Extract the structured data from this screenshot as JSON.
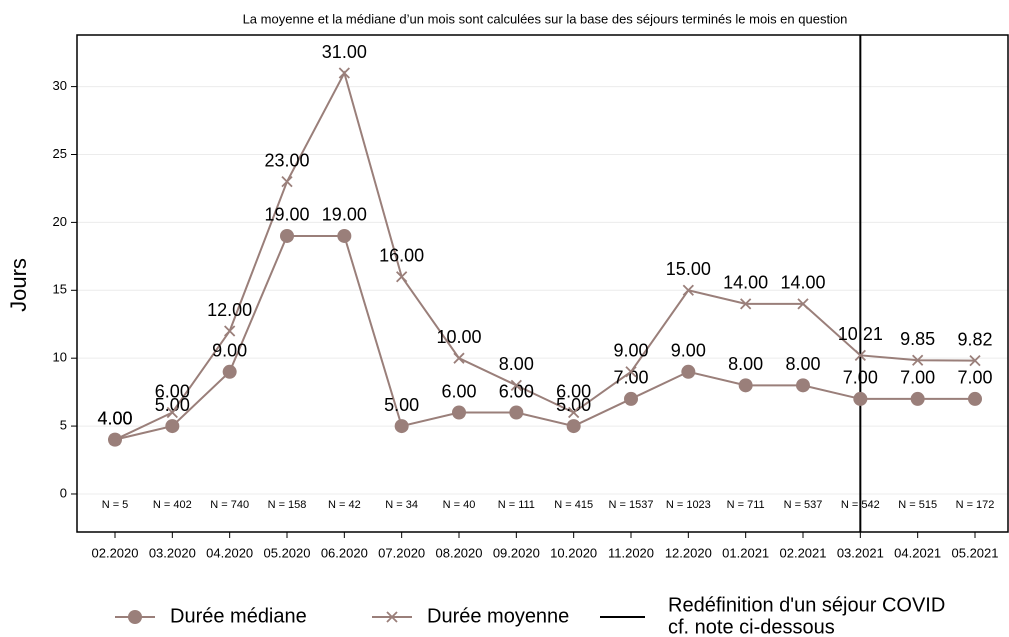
{
  "chart_data": {
    "type": "line",
    "title": "La moyenne et la médiane d’un mois sont calculées sur la base des séjours terminés le mois en question",
    "y_label": "Jours",
    "categories": [
      "02.2020",
      "03.2020",
      "04.2020",
      "05.2020",
      "06.2020",
      "07.2020",
      "08.2020",
      "09.2020",
      "10.2020",
      "11.2020",
      "12.2020",
      "01.2021",
      "02.2021",
      "03.2021",
      "04.2021",
      "05.2021"
    ],
    "series": [
      {
        "name": "Durée médiane",
        "color": "#9a7f7a",
        "marker": "circle",
        "values": [
          4,
          5,
          9,
          19,
          19,
          5,
          6,
          6,
          5,
          7,
          9,
          8,
          8,
          7,
          7,
          7
        ],
        "value_labels": [
          "4.00",
          "5.00",
          "9.00",
          "19.00",
          "19.00",
          "5.00",
          "6.00",
          "6.00",
          "5.00",
          "7.00",
          "9.00",
          "8.00",
          "8.00",
          "7.00",
          "7.00",
          "7.00"
        ]
      },
      {
        "name": "Durée moyenne",
        "color": "#9a7f7a",
        "marker": "x",
        "values": [
          4,
          6,
          12,
          23,
          31,
          16,
          10,
          8,
          6,
          9,
          15,
          14,
          14,
          10.21,
          9.85,
          9.82
        ],
        "value_labels": [
          "4.00",
          "6.00",
          "12.00",
          "23.00",
          "31.00",
          "16.00",
          "10.00",
          "8.00",
          "6.00",
          "9.00",
          "15.00",
          "14.00",
          "14.00",
          "10.21",
          "9.85",
          "9.82"
        ]
      }
    ],
    "n_labels": [
      "N = 5",
      "N = 402",
      "N = 740",
      "N = 158",
      "N = 42",
      "N = 34",
      "N = 40",
      "N = 111",
      "N = 415",
      "N = 1537",
      "N = 1023",
      "N = 711",
      "N = 537",
      "N = 542",
      "N = 515",
      "N = 172"
    ],
    "vline": {
      "at": "03.2021",
      "color": "#000000",
      "legend": [
        "Redéfinition d'un séjour COVID",
        "cf. note ci-dessous"
      ]
    },
    "ylim": [
      -2.8,
      33.8
    ],
    "yticks": [
      0,
      5,
      10,
      15,
      20,
      25,
      30
    ],
    "grid": true,
    "legend_position": "bottom"
  }
}
